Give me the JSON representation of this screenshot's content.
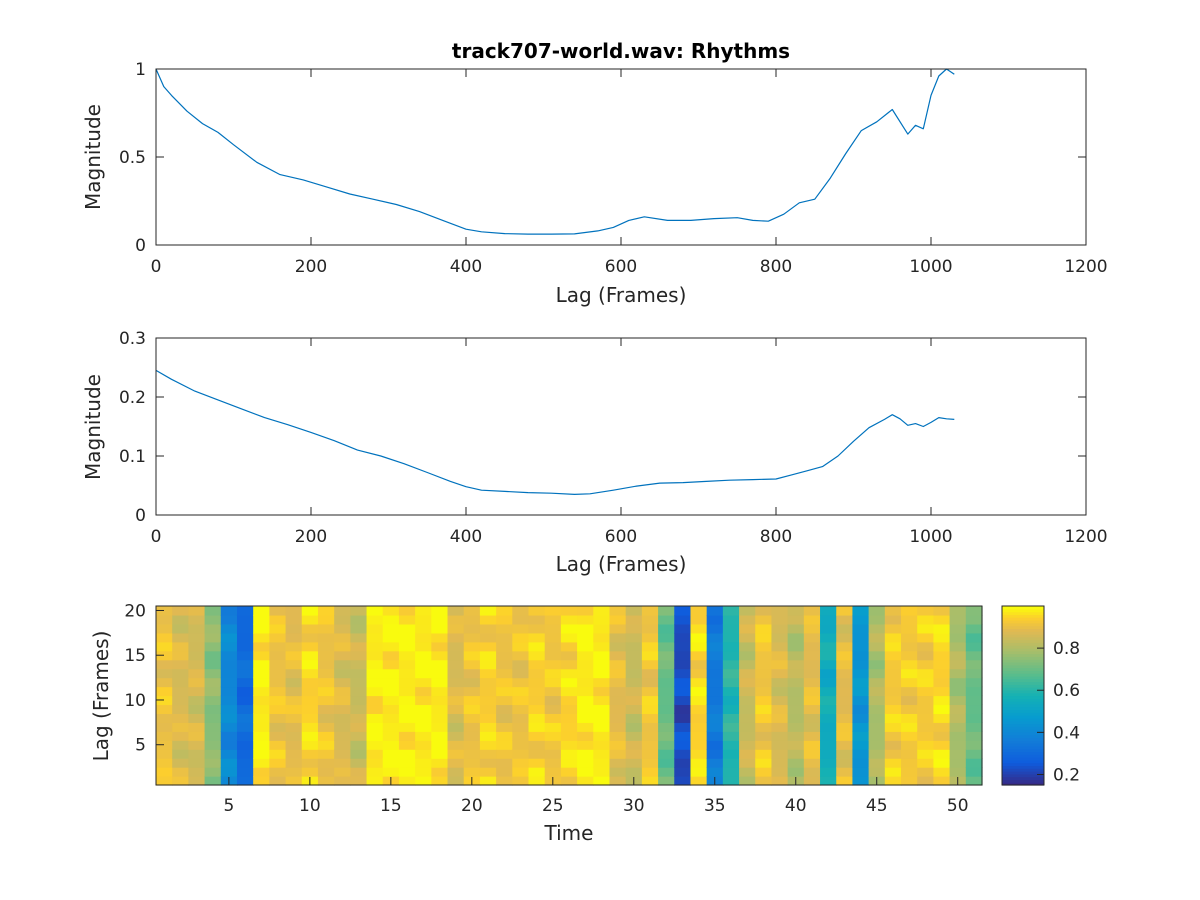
{
  "chart_data": [
    {
      "type": "line",
      "title": "track707-world.wav: Rhythms",
      "xlabel": "Lag (Frames)",
      "ylabel": "Magnitude",
      "xlim": [
        0,
        1200
      ],
      "ylim": [
        0,
        1
      ],
      "xticks": [
        "0",
        "200",
        "400",
        "600",
        "800",
        "1000",
        "1200"
      ],
      "yticks": [
        "0",
        "0.5",
        "1"
      ],
      "color": "#0072bd",
      "x": [
        0,
        10,
        20,
        40,
        60,
        80,
        100,
        130,
        160,
        190,
        220,
        250,
        280,
        310,
        340,
        370,
        400,
        420,
        450,
        480,
        510,
        540,
        570,
        590,
        610,
        630,
        660,
        690,
        720,
        750,
        770,
        790,
        810,
        830,
        850,
        870,
        890,
        910,
        930,
        950,
        970,
        980,
        990,
        1000,
        1010,
        1020,
        1030
      ],
      "y": [
        1.0,
        0.9,
        0.85,
        0.76,
        0.69,
        0.64,
        0.57,
        0.47,
        0.4,
        0.37,
        0.33,
        0.29,
        0.26,
        0.23,
        0.19,
        0.14,
        0.09,
        0.075,
        0.065,
        0.062,
        0.062,
        0.063,
        0.08,
        0.1,
        0.14,
        0.16,
        0.14,
        0.14,
        0.15,
        0.155,
        0.14,
        0.135,
        0.175,
        0.24,
        0.26,
        0.38,
        0.52,
        0.65,
        0.7,
        0.77,
        0.63,
        0.68,
        0.66,
        0.85,
        0.96,
        1.0,
        0.97
      ]
    },
    {
      "type": "line",
      "xlabel": "Lag (Frames)",
      "ylabel": "Magnitude",
      "xlim": [
        0,
        1200
      ],
      "ylim": [
        0,
        0.3
      ],
      "xticks": [
        "0",
        "200",
        "400",
        "600",
        "800",
        "1000",
        "1200"
      ],
      "yticks": [
        "0",
        "0.1",
        "0.2",
        "0.3"
      ],
      "color": "#0072bd",
      "x": [
        0,
        20,
        50,
        80,
        110,
        140,
        170,
        200,
        230,
        260,
        290,
        320,
        350,
        380,
        400,
        420,
        450,
        480,
        510,
        540,
        560,
        590,
        620,
        650,
        680,
        710,
        740,
        770,
        800,
        820,
        840,
        860,
        880,
        900,
        920,
        940,
        950,
        960,
        970,
        980,
        990,
        1000,
        1010,
        1020,
        1030
      ],
      "y": [
        0.245,
        0.23,
        0.21,
        0.195,
        0.18,
        0.165,
        0.153,
        0.14,
        0.126,
        0.11,
        0.1,
        0.087,
        0.072,
        0.057,
        0.048,
        0.042,
        0.04,
        0.038,
        0.037,
        0.035,
        0.036,
        0.042,
        0.049,
        0.054,
        0.055,
        0.057,
        0.059,
        0.06,
        0.061,
        0.068,
        0.075,
        0.082,
        0.1,
        0.125,
        0.148,
        0.162,
        0.17,
        0.163,
        0.152,
        0.155,
        0.15,
        0.157,
        0.165,
        0.163,
        0.162
      ]
    },
    {
      "type": "heatmap",
      "xlabel": "Time",
      "ylabel": "Lag (Frames)",
      "xlim": [
        0.5,
        51.5
      ],
      "ylim": [
        0.5,
        20.5
      ],
      "xticks": [
        "5",
        "10",
        "15",
        "20",
        "25",
        "30",
        "35",
        "40",
        "45",
        "50"
      ],
      "yticks": [
        "5",
        "10",
        "15",
        "20"
      ],
      "n_cols": 51,
      "n_rows": 20,
      "column_values": [
        0.92,
        0.88,
        0.87,
        0.75,
        0.4,
        0.3,
        0.99,
        0.92,
        0.9,
        0.96,
        0.92,
        0.88,
        0.85,
        0.99,
        0.99,
        0.99,
        0.99,
        0.99,
        0.88,
        0.92,
        0.95,
        0.92,
        0.92,
        0.95,
        0.93,
        0.96,
        0.99,
        0.99,
        0.9,
        0.85,
        0.93,
        0.7,
        0.22,
        0.96,
        0.35,
        0.6,
        0.85,
        0.93,
        0.88,
        0.82,
        0.9,
        0.55,
        0.9,
        0.45,
        0.8,
        0.94,
        0.94,
        0.94,
        0.96,
        0.8,
        0.7
      ],
      "colorbar": {
        "ticks": [
          "0.2",
          "0.4",
          "0.6",
          "0.8"
        ],
        "range": [
          0.15,
          1.0
        ]
      }
    }
  ]
}
